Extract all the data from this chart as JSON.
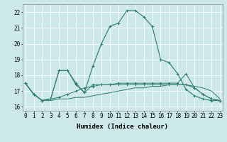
{
  "x": [
    0,
    1,
    2,
    3,
    4,
    5,
    6,
    7,
    8,
    9,
    10,
    11,
    12,
    13,
    14,
    15,
    16,
    17,
    18,
    19,
    20,
    21,
    22,
    23
  ],
  "line1": [
    17.5,
    16.8,
    16.4,
    16.4,
    16.5,
    16.5,
    16.6,
    16.6,
    16.7,
    16.8,
    16.9,
    17.0,
    17.1,
    17.2,
    17.2,
    17.3,
    17.3,
    17.4,
    17.4,
    17.4,
    17.3,
    17.2,
    17.0,
    16.5
  ],
  "line2": [
    17.5,
    16.8,
    16.4,
    16.5,
    16.6,
    16.8,
    17.0,
    17.2,
    17.3,
    17.4,
    17.4,
    17.5,
    17.5,
    17.5,
    17.5,
    17.5,
    17.5,
    17.5,
    17.5,
    18.1,
    17.2,
    16.8,
    16.5,
    16.4
  ],
  "line3": [
    17.5,
    16.8,
    16.4,
    16.5,
    18.3,
    18.3,
    17.5,
    16.9,
    17.4,
    17.4,
    17.4,
    17.4,
    17.4,
    17.4,
    17.4,
    17.4,
    17.4,
    17.4,
    17.4,
    17.4,
    17.2,
    16.8,
    16.5,
    16.4
  ],
  "line4": [
    17.5,
    16.8,
    16.4,
    16.5,
    18.3,
    18.3,
    17.4,
    16.9,
    18.6,
    20.0,
    21.1,
    21.3,
    22.1,
    22.1,
    21.7,
    21.1,
    19.0,
    18.8,
    18.1,
    17.1,
    16.7,
    16.5,
    16.4,
    16.4
  ],
  "xlabel": "Humidex (Indice chaleur)",
  "yticks": [
    16,
    17,
    18,
    19,
    20,
    21,
    22
  ],
  "xticks": [
    0,
    1,
    2,
    3,
    4,
    5,
    6,
    7,
    8,
    9,
    10,
    11,
    12,
    13,
    14,
    15,
    16,
    17,
    18,
    19,
    20,
    21,
    22,
    23
  ],
  "bg_color": "#cce8e8",
  "grid_color": "#ffffff",
  "line_color": "#2d7a6e",
  "tick_fontsize": 5.5,
  "xlabel_fontsize": 6.5,
  "ylim_bottom": 15.75,
  "ylim_top": 22.5
}
